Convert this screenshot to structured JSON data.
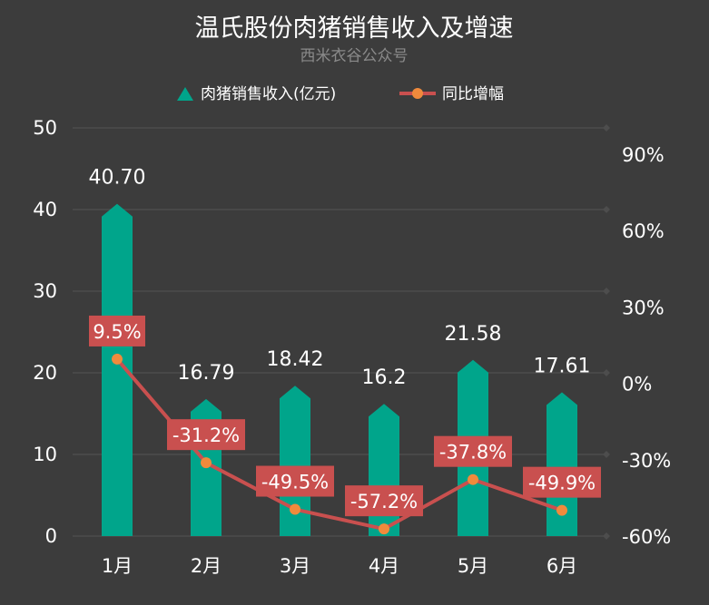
{
  "chart_data": {
    "type": "bar+line",
    "title": "温氏股份肉猪销售收入及增速",
    "subtitle": "西米衣谷公众号",
    "categories": [
      "1月",
      "2月",
      "3月",
      "4月",
      "5月",
      "6月"
    ],
    "series": [
      {
        "name": "肉猪销售收入(亿元)",
        "type": "bar",
        "axis": "left",
        "values": [
          40.7,
          16.79,
          18.42,
          16.2,
          21.58,
          17.61
        ],
        "labels": [
          "40.70",
          "16.79",
          "18.42",
          "16.2",
          "21.58",
          "17.61"
        ]
      },
      {
        "name": "同比增幅",
        "type": "line",
        "axis": "right",
        "values": [
          9.5,
          -31.2,
          -49.5,
          -57.2,
          -37.8,
          -49.9
        ],
        "labels": [
          "9.5%",
          "-31.2%",
          "-49.5%",
          "-57.2%",
          "-37.8%",
          "-49.9%"
        ]
      }
    ],
    "left_axis": {
      "min": 0,
      "max": 50,
      "ticks": [
        "0",
        "10",
        "20",
        "30",
        "40",
        "50"
      ],
      "tick_values": [
        0,
        10,
        20,
        30,
        40,
        50
      ]
    },
    "right_axis": {
      "min": -60,
      "max": 90,
      "ticks": [
        "-60%",
        "-30%",
        "0%",
        "30%",
        "60%",
        "90%"
      ],
      "tick_values": [
        -60,
        -30,
        0,
        30,
        60,
        90
      ]
    },
    "legend_position": "top-center",
    "grid": true,
    "colors": {
      "bar": "#00a58b",
      "line": "#c9504f",
      "marker": "#f08a3c",
      "label_box": "#c9504f",
      "grid": "#4d4d4d",
      "background": "#3c3c3c"
    }
  }
}
